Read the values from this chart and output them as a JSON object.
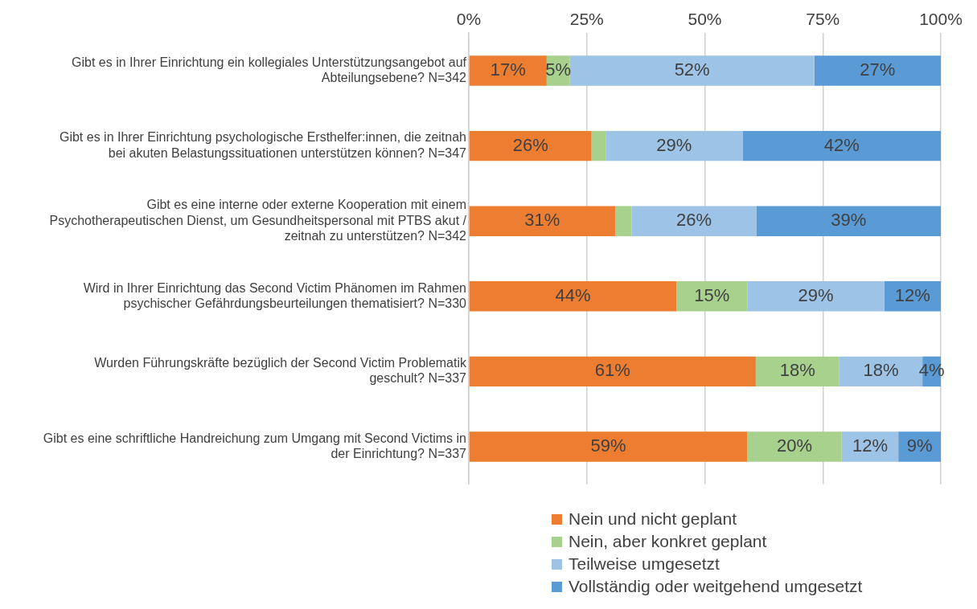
{
  "chart_data": {
    "type": "bar",
    "orientation": "horizontal",
    "stacked": true,
    "categories": [
      "Gibt es in Ihrer Einrichtung ein kollegiales Unterstützungsangebot auf Abteilungsebene? N=342",
      "Gibt es in Ihrer Einrichtung psychologische Ersthelfer:innen, die zeitnah bei akuten Belastungssituationen unterstützen können? N=347",
      "Gibt es eine interne oder externe Kooperation mit einem Psychotherapeutischen Dienst, um Gesundheitspersonal mit PTBS akut / zeitnah zu unterstützen? N=342",
      "Wird in Ihrer Einrichtung das Second Victim Phänomen im Rahmen psychischer Gefährdungsbeurteilungen thematisiert? N=330",
      "Wurden Führungskräfte bezüglich der Second Victim Problematik geschult? N=337",
      "Gibt es eine schriftliche Handreichung zum Umgang mit Second Victims in der Einrichtung? N=337"
    ],
    "series": [
      {
        "name": "Nein und nicht geplant",
        "color": "#ed7d31",
        "values": [
          16.5,
          26,
          31,
          44,
          60.8,
          59
        ],
        "value_labels": [
          "17%",
          "26%",
          "31%",
          "44%",
          "61%",
          "59%"
        ]
      },
      {
        "name": "Nein, aber konkret geplant",
        "color": "#a9d18e",
        "values": [
          4.9,
          3,
          3.5,
          15,
          17.7,
          20
        ],
        "value_labels": [
          "5%",
          null,
          null,
          "15%",
          "18%",
          "20%"
        ]
      },
      {
        "name": "Teilweise umgesetzt",
        "color": "#9dc3e6",
        "values": [
          51.8,
          29,
          26.4,
          29,
          17.6,
          12
        ],
        "value_labels": [
          "52%",
          "29%",
          "26%",
          "29%",
          "18%",
          "12%"
        ]
      },
      {
        "name": "Vollständig oder weitgehend umgesetzt",
        "color": "#5b9bd5",
        "values": [
          26.8,
          42,
          39.1,
          12,
          3.9,
          9
        ],
        "value_labels": [
          "27%",
          "42%",
          "39%",
          "12%",
          "4%",
          "9%"
        ]
      }
    ],
    "xlim": [
      0,
      100
    ],
    "xticks": [
      {
        "value": 0,
        "label": "0%"
      },
      {
        "value": 25,
        "label": "25%"
      },
      {
        "value": 50,
        "label": "50%"
      },
      {
        "value": 75,
        "label": "75%"
      },
      {
        "value": 100,
        "label": "100%"
      }
    ],
    "grid": "x",
    "legend": "bottom"
  }
}
